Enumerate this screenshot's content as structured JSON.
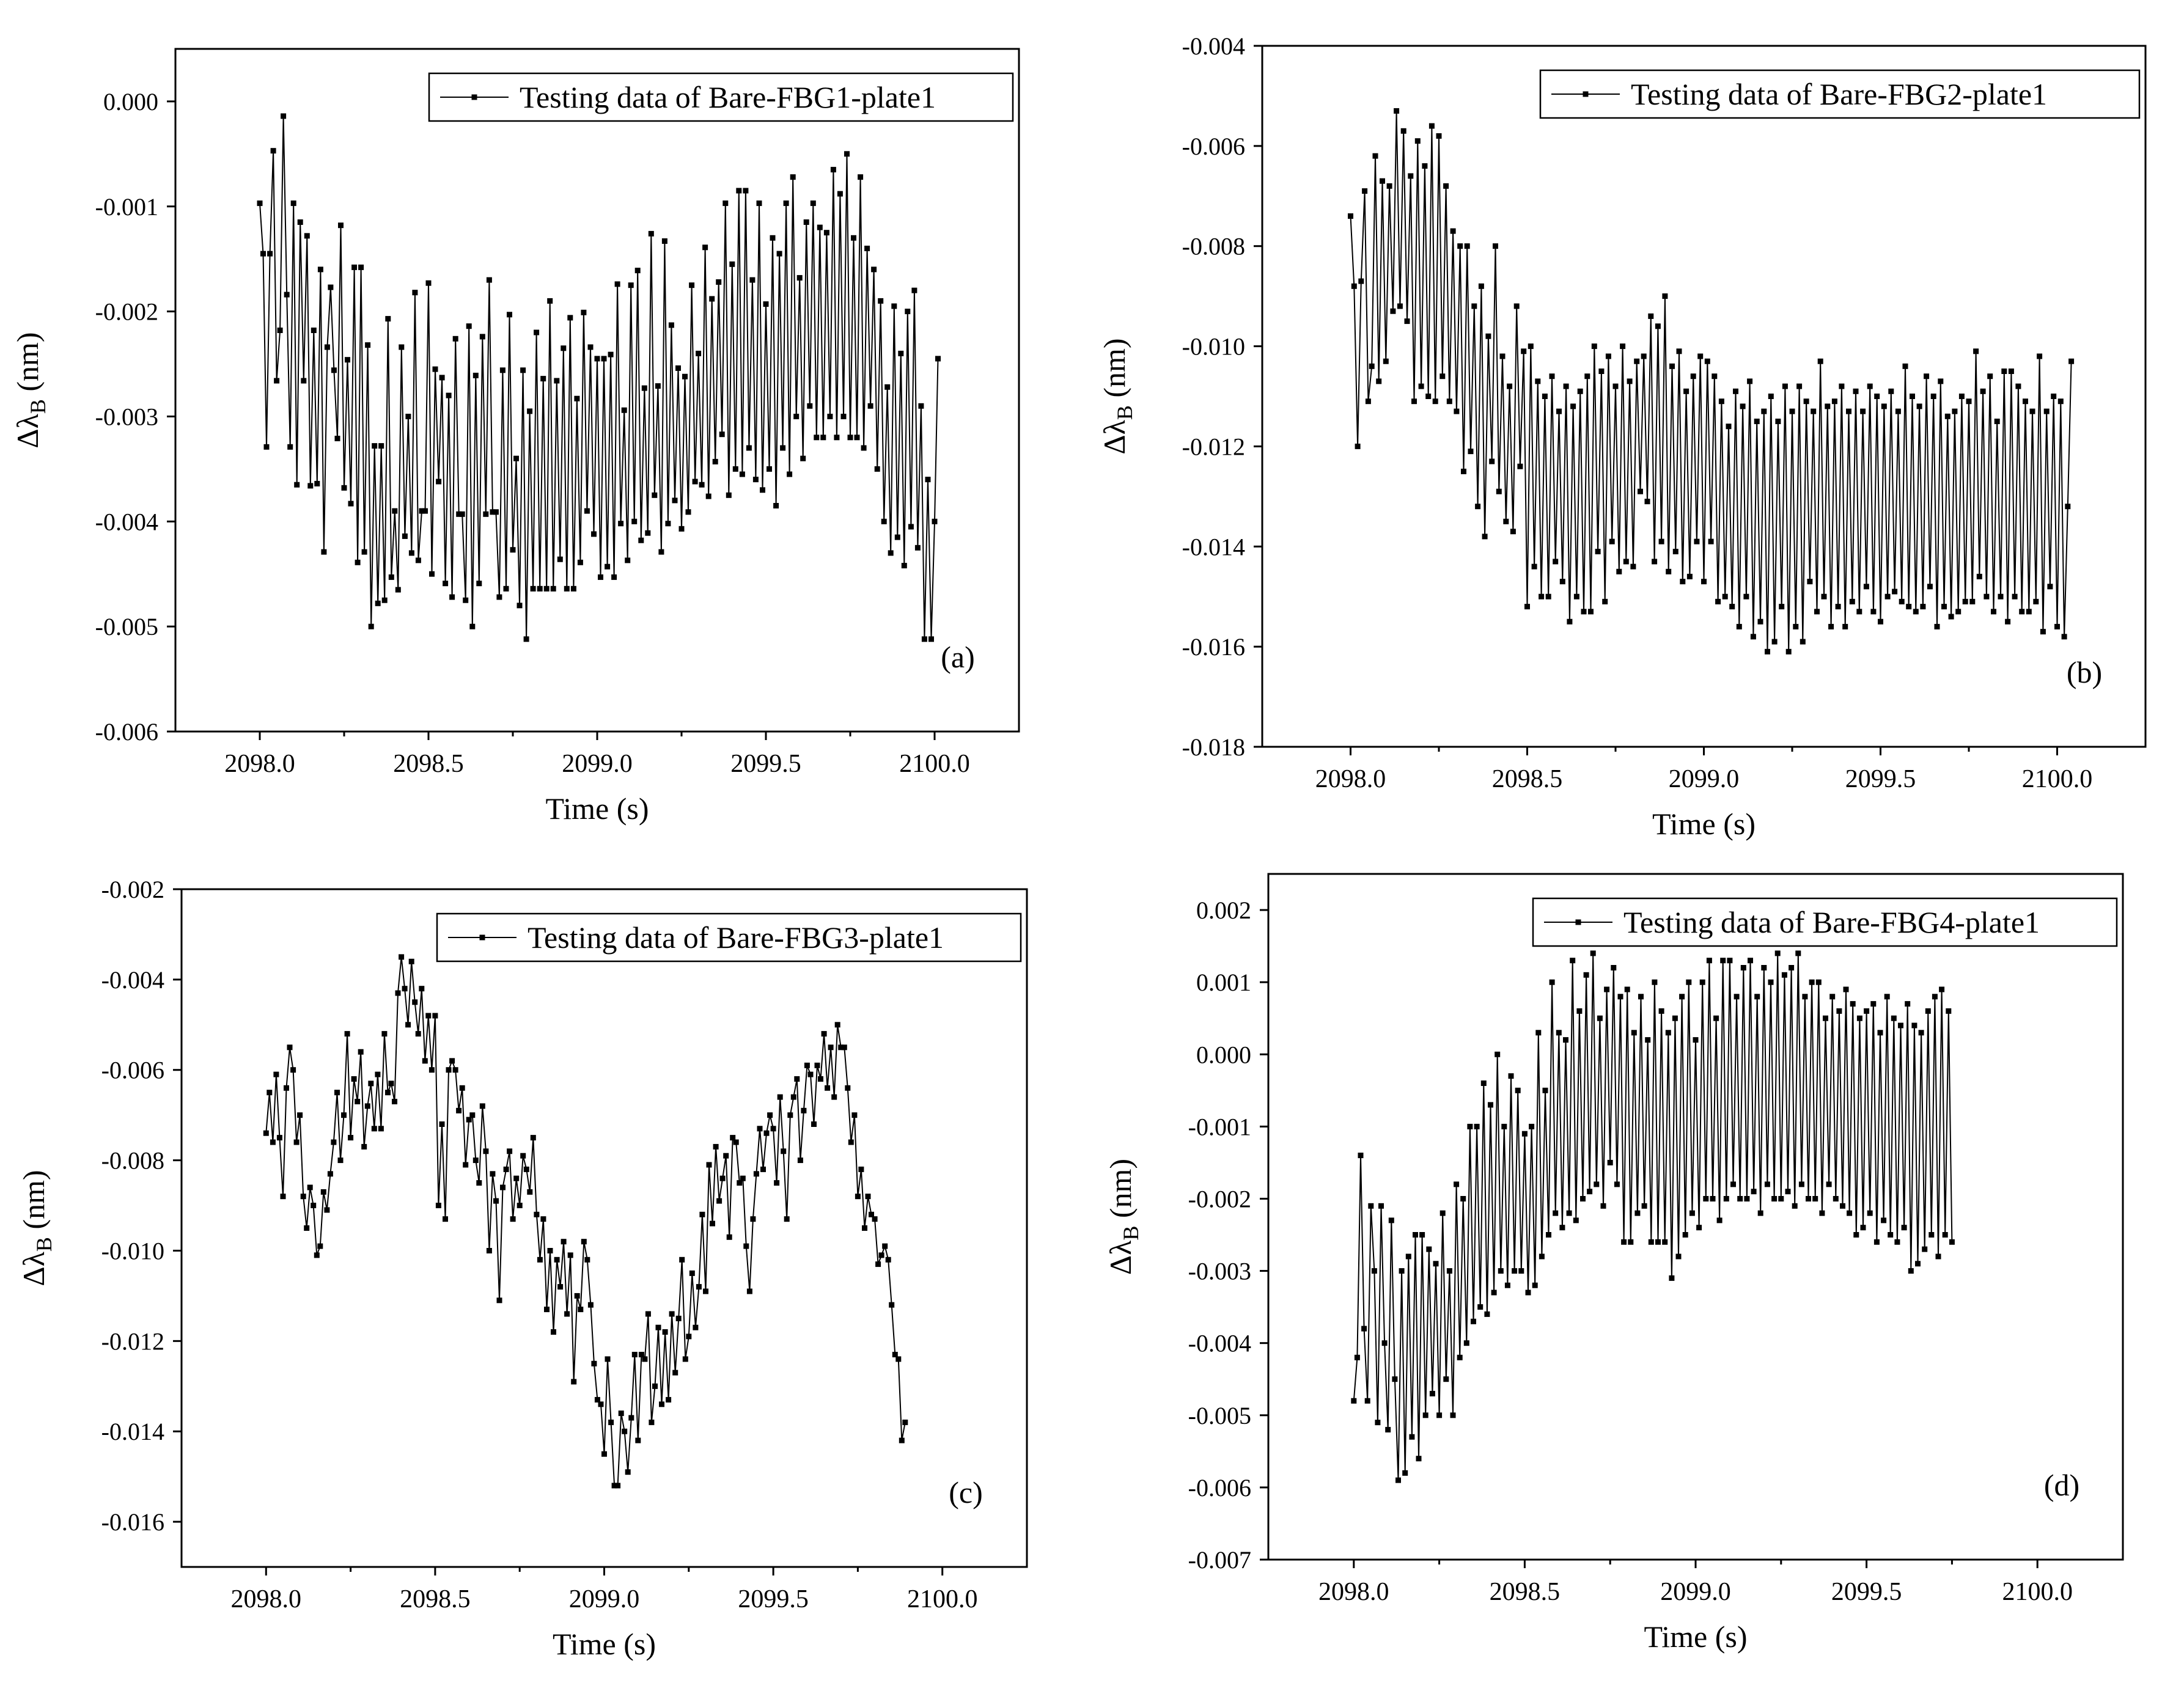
{
  "chart_data": [
    {
      "type": "line",
      "panel": "(a)",
      "series_name": "Testing data of Bare-FBG1-plate1",
      "xlabel": "Time (s)",
      "ylabel": "Δλ",
      "ylabel_sub": "B",
      "ylabel_unit": " (nm)",
      "xlim": [
        2097.75,
        2100.25
      ],
      "ylim": [
        -0.006,
        0.0005
      ],
      "xticks": [
        2098.0,
        2098.5,
        2099.0,
        2099.5,
        2100.0
      ],
      "xtick_labels": [
        "2098.0",
        "2098.5",
        "2099.0",
        "2099.5",
        "2100.0"
      ],
      "yticks": [
        0.0,
        -0.001,
        -0.002,
        -0.003,
        -0.004,
        -0.005,
        -0.006
      ],
      "ytick_labels": [
        "0.000",
        "-0.001",
        "-0.002",
        "-0.003",
        "-0.004",
        "-0.005",
        "-0.006"
      ],
      "legend_position": "top-right",
      "x_start": 2098.0,
      "x_step": 0.01,
      "y": [
        -0.00097,
        -0.00145,
        -0.00329,
        -0.00145,
        -0.00047,
        -0.00266,
        -0.00218,
        -0.00014,
        -0.00184,
        -0.00329,
        -0.00097,
        -0.00365,
        -0.00115,
        -0.00266,
        -0.00128,
        -0.00366,
        -0.00218,
        -0.00364,
        -0.0016,
        -0.00429,
        -0.00234,
        -0.00177,
        -0.00256,
        -0.00321,
        -0.00118,
        -0.00368,
        -0.00246,
        -0.00383,
        -0.00158,
        -0.00439,
        -0.00158,
        -0.00429,
        -0.00232,
        -0.005,
        -0.00328,
        -0.00478,
        -0.00328,
        -0.00475,
        -0.00207,
        -0.00453,
        -0.0039,
        -0.00465,
        -0.00234,
        -0.00414,
        -0.003,
        -0.0043,
        -0.00182,
        -0.00437,
        -0.0039,
        -0.0039,
        -0.00173,
        -0.0045,
        -0.00255,
        -0.00362,
        -0.00263,
        -0.00459,
        -0.0028,
        -0.00472,
        -0.00226,
        -0.00393,
        -0.00393,
        -0.00475,
        -0.00214,
        -0.005,
        -0.00261,
        -0.00459,
        -0.00224,
        -0.00393,
        -0.0017,
        -0.00391,
        -0.00391,
        -0.00472,
        -0.00256,
        -0.00464,
        -0.00203,
        -0.00427,
        -0.0034,
        -0.0048,
        -0.00256,
        -0.00512,
        -0.00295,
        -0.00464,
        -0.0022,
        -0.00464,
        -0.00264,
        -0.00464,
        -0.0019,
        -0.00464,
        -0.00266,
        -0.00436,
        -0.00235,
        -0.00464,
        -0.00206,
        -0.00464,
        -0.00283,
        -0.00439,
        -0.00201,
        -0.0039,
        -0.00234,
        -0.00412,
        -0.00245,
        -0.00453,
        -0.00245,
        -0.00443,
        -0.00241,
        -0.00453,
        -0.00174,
        -0.00402,
        -0.00294,
        -0.00437,
        -0.00175,
        -0.004,
        -0.00161,
        -0.00418,
        -0.00273,
        -0.00411,
        -0.00126,
        -0.00375,
        -0.00271,
        -0.00429,
        -0.00133,
        -0.00402,
        -0.00213,
        -0.0038,
        -0.00254,
        -0.00407,
        -0.00262,
        -0.00391,
        -0.00175,
        -0.00362,
        -0.0024,
        -0.00365,
        -0.00139,
        -0.00376,
        -0.00188,
        -0.00343,
        -0.00172,
        -0.00317,
        -0.00097,
        -0.00375,
        -0.00155,
        -0.0035,
        -0.00085,
        -0.00355,
        -0.00085,
        -0.0033,
        -0.0017,
        -0.0036,
        -0.00097,
        -0.0037,
        -0.00193,
        -0.0035,
        -0.0013,
        -0.00385,
        -0.00145,
        -0.0033,
        -0.00097,
        -0.00355,
        -0.00072,
        -0.003,
        -0.00168,
        -0.0034,
        -0.00115,
        -0.0029,
        -0.00097,
        -0.0032,
        -0.0012,
        -0.0032,
        -0.00125,
        -0.003,
        -0.00065,
        -0.0032,
        -0.00088,
        -0.003,
        -0.0005,
        -0.0032,
        -0.0013,
        -0.0032,
        -0.00072,
        -0.0033,
        -0.0014,
        -0.0029,
        -0.0016,
        -0.0035,
        -0.0019,
        -0.004,
        -0.00272,
        -0.0043,
        -0.00195,
        -0.00415,
        -0.0024,
        -0.00442,
        -0.002,
        -0.00405,
        -0.0018,
        -0.00425,
        -0.0029,
        -0.00512,
        -0.0036,
        -0.00512,
        -0.004,
        -0.00245
      ]
    },
    {
      "type": "line",
      "panel": "(b)",
      "series_name": "Testing data of Bare-FBG2-plate1",
      "xlabel": "Time (s)",
      "ylabel": "Δλ",
      "ylabel_sub": "B",
      "ylabel_unit": " (nm)",
      "xlim": [
        2097.75,
        2100.25
      ],
      "ylim": [
        -0.018,
        -0.004
      ],
      "xticks": [
        2098.0,
        2098.5,
        2099.0,
        2099.5,
        2100.0
      ],
      "xtick_labels": [
        "2098.0",
        "2098.5",
        "2099.0",
        "2099.5",
        "2100.0"
      ],
      "yticks": [
        -0.004,
        -0.006,
        -0.008,
        -0.01,
        -0.012,
        -0.014,
        -0.016,
        -0.018
      ],
      "ytick_labels": [
        "-0.004",
        "-0.006",
        "-0.008",
        "-0.010",
        "-0.012",
        "-0.014",
        "-0.016",
        "-0.018"
      ],
      "legend_position": "top-right",
      "x_start": 2098.0,
      "x_step": 0.01,
      "y": [
        -0.0074,
        -0.0088,
        -0.012,
        -0.0087,
        -0.0069,
        -0.0111,
        -0.0104,
        -0.0062,
        -0.0107,
        -0.0067,
        -0.0103,
        -0.0068,
        -0.0093,
        -0.0053,
        -0.0092,
        -0.0057,
        -0.0095,
        -0.0066,
        -0.0111,
        -0.0059,
        -0.0108,
        -0.0064,
        -0.011,
        -0.0056,
        -0.0111,
        -0.0058,
        -0.0106,
        -0.0068,
        -0.0111,
        -0.0077,
        -0.0113,
        -0.008,
        -0.0125,
        -0.008,
        -0.0121,
        -0.0092,
        -0.0132,
        -0.0088,
        -0.0138,
        -0.0098,
        -0.0123,
        -0.008,
        -0.0129,
        -0.0102,
        -0.0135,
        -0.0108,
        -0.0137,
        -0.0092,
        -0.0124,
        -0.0101,
        -0.0152,
        -0.01,
        -0.0144,
        -0.0107,
        -0.015,
        -0.011,
        -0.015,
        -0.0106,
        -0.0143,
        -0.0113,
        -0.0147,
        -0.0108,
        -0.0155,
        -0.0112,
        -0.015,
        -0.0109,
        -0.0153,
        -0.0106,
        -0.0153,
        -0.01,
        -0.0141,
        -0.0105,
        -0.0151,
        -0.0102,
        -0.0139,
        -0.0108,
        -0.0145,
        -0.01,
        -0.0143,
        -0.0107,
        -0.0144,
        -0.0103,
        -0.0129,
        -0.0102,
        -0.0131,
        -0.0094,
        -0.0143,
        -0.0096,
        -0.0139,
        -0.009,
        -0.0145,
        -0.0104,
        -0.0141,
        -0.0101,
        -0.0147,
        -0.0109,
        -0.0146,
        -0.0106,
        -0.0139,
        -0.0102,
        -0.0147,
        -0.0103,
        -0.0139,
        -0.0106,
        -0.0151,
        -0.0111,
        -0.015,
        -0.0116,
        -0.0152,
        -0.0109,
        -0.0156,
        -0.0112,
        -0.015,
        -0.0107,
        -0.0158,
        -0.0115,
        -0.0155,
        -0.0113,
        -0.0161,
        -0.011,
        -0.0159,
        -0.0115,
        -0.0152,
        -0.0108,
        -0.0161,
        -0.0113,
        -0.0156,
        -0.0108,
        -0.0159,
        -0.0111,
        -0.0147,
        -0.0113,
        -0.0153,
        -0.0103,
        -0.015,
        -0.0112,
        -0.0156,
        -0.0111,
        -0.0152,
        -0.0108,
        -0.0156,
        -0.0113,
        -0.0151,
        -0.0109,
        -0.0153,
        -0.0113,
        -0.0148,
        -0.0108,
        -0.0153,
        -0.011,
        -0.0155,
        -0.0112,
        -0.015,
        -0.0109,
        -0.0149,
        -0.0113,
        -0.0151,
        -0.0104,
        -0.0152,
        -0.011,
        -0.0153,
        -0.0112,
        -0.0152,
        -0.0106,
        -0.0148,
        -0.011,
        -0.0156,
        -0.0107,
        -0.0152,
        -0.0114,
        -0.0154,
        -0.0113,
        -0.0153,
        -0.011,
        -0.0151,
        -0.0111,
        -0.0151,
        -0.0101,
        -0.0146,
        -0.0109,
        -0.015,
        -0.0106,
        -0.0153,
        -0.0115,
        -0.015,
        -0.0105,
        -0.0155,
        -0.0105,
        -0.015,
        -0.0108,
        -0.0153,
        -0.0111,
        -0.0153,
        -0.0113,
        -0.0151,
        -0.0102,
        -0.0157,
        -0.0113,
        -0.0148,
        -0.011,
        -0.0156,
        -0.0111,
        -0.0158,
        -0.0132,
        -0.0103
      ]
    },
    {
      "type": "line",
      "panel": "(c)",
      "series_name": "Testing data of Bare-FBG3-plate1",
      "xlabel": "Time (s)",
      "ylabel": "Δλ",
      "ylabel_sub": "B",
      "ylabel_unit": " (nm)",
      "xlim": [
        2097.75,
        2100.25
      ],
      "ylim": [
        -0.017,
        -0.002
      ],
      "xticks": [
        2098.0,
        2098.5,
        2099.0,
        2099.5,
        2100.0
      ],
      "xtick_labels": [
        "2098.0",
        "2098.5",
        "2099.0",
        "2099.5",
        "2100.0"
      ],
      "yticks": [
        -0.002,
        -0.004,
        -0.006,
        -0.008,
        -0.01,
        -0.012,
        -0.014,
        -0.016
      ],
      "ytick_labels": [
        "-0.002",
        "-0.004",
        "-0.006",
        "-0.008",
        "-0.010",
        "-0.012",
        "-0.014",
        "-0.016"
      ],
      "legend_position": "top-right",
      "x_start": 2098.0,
      "x_step": 0.01,
      "y": [
        -0.0074,
        -0.0065,
        -0.0076,
        -0.0061,
        -0.0075,
        -0.0088,
        -0.0064,
        -0.0055,
        -0.006,
        -0.0076,
        -0.007,
        -0.0088,
        -0.0095,
        -0.0086,
        -0.009,
        -0.0101,
        -0.0099,
        -0.0087,
        -0.0091,
        -0.0083,
        -0.0076,
        -0.0065,
        -0.008,
        -0.007,
        -0.0052,
        -0.0075,
        -0.0062,
        -0.0067,
        -0.0056,
        -0.0077,
        -0.0068,
        -0.0063,
        -0.0073,
        -0.0061,
        -0.0073,
        -0.0052,
        -0.0065,
        -0.0063,
        -0.0067,
        -0.0043,
        -0.0035,
        -0.0042,
        -0.005,
        -0.0036,
        -0.0045,
        -0.0052,
        -0.0042,
        -0.0058,
        -0.0048,
        -0.006,
        -0.0048,
        -0.009,
        -0.0072,
        -0.0093,
        -0.006,
        -0.0058,
        -0.006,
        -0.0069,
        -0.0064,
        -0.0081,
        -0.0071,
        -0.007,
        -0.008,
        -0.0085,
        -0.0068,
        -0.0078,
        -0.01,
        -0.0083,
        -0.0089,
        -0.0111,
        -0.0086,
        -0.0082,
        -0.0078,
        -0.0093,
        -0.0084,
        -0.009,
        -0.0079,
        -0.0082,
        -0.0087,
        -0.0075,
        -0.0092,
        -0.0102,
        -0.0093,
        -0.0113,
        -0.01,
        -0.0118,
        -0.0102,
        -0.0108,
        -0.0098,
        -0.0114,
        -0.0101,
        -0.0129,
        -0.011,
        -0.0113,
        -0.0098,
        -0.0102,
        -0.0112,
        -0.0125,
        -0.0133,
        -0.0134,
        -0.0145,
        -0.0124,
        -0.0138,
        -0.0152,
        -0.0152,
        -0.0136,
        -0.014,
        -0.0149,
        -0.0137,
        -0.0123,
        -0.0142,
        -0.0123,
        -0.0124,
        -0.0114,
        -0.0138,
        -0.013,
        -0.0117,
        -0.0134,
        -0.0118,
        -0.0133,
        -0.0114,
        -0.0127,
        -0.0115,
        -0.0102,
        -0.0124,
        -0.0119,
        -0.0105,
        -0.0117,
        -0.0108,
        -0.0092,
        -0.0109,
        -0.0081,
        -0.0094,
        -0.0077,
        -0.0089,
        -0.0084,
        -0.0079,
        -0.0097,
        -0.0075,
        -0.0076,
        -0.0085,
        -0.0084,
        -0.0099,
        -0.0109,
        -0.0093,
        -0.0083,
        -0.0073,
        -0.0082,
        -0.0074,
        -0.007,
        -0.0073,
        -0.0085,
        -0.0066,
        -0.0078,
        -0.0093,
        -0.007,
        -0.0066,
        -0.0062,
        -0.008,
        -0.0069,
        -0.0059,
        -0.0061,
        -0.0072,
        -0.0059,
        -0.0062,
        -0.0052,
        -0.0064,
        -0.0055,
        -0.0066,
        -0.005,
        -0.0055,
        -0.0055,
        -0.0064,
        -0.0076,
        -0.007,
        -0.0088,
        -0.0082,
        -0.0095,
        -0.0088,
        -0.0092,
        -0.0093,
        -0.0103,
        -0.0101,
        -0.0099,
        -0.0102,
        -0.0112,
        -0.0123,
        -0.0124,
        -0.0142,
        -0.0138
      ]
    },
    {
      "type": "line",
      "panel": "(d)",
      "series_name": "Testing data of Bare-FBG4-plate1",
      "xlabel": "Time (s)",
      "ylabel": "Δλ",
      "ylabel_sub": "B",
      "ylabel_unit": " (nm)",
      "xlim": [
        2097.75,
        2100.25
      ],
      "ylim": [
        -0.007,
        0.0025
      ],
      "xticks": [
        2098.0,
        2098.5,
        2099.0,
        2099.5,
        2100.0
      ],
      "xtick_labels": [
        "2098.0",
        "2098.5",
        "2099.0",
        "2099.5",
        "2100.0"
      ],
      "yticks": [
        0.002,
        0.001,
        0.0,
        -0.001,
        -0.002,
        -0.003,
        -0.004,
        -0.005,
        -0.006,
        -0.007
      ],
      "ytick_labels": [
        "0.002",
        "0.001",
        "0.000",
        "-0.001",
        "-0.002",
        "-0.003",
        "-0.004",
        "-0.005",
        "-0.006",
        "-0.007"
      ],
      "legend_position": "top-right",
      "x_start": 2098.0,
      "x_step": 0.01,
      "y": [
        -0.0048,
        -0.0042,
        -0.0014,
        -0.0038,
        -0.0048,
        -0.0021,
        -0.003,
        -0.0051,
        -0.0021,
        -0.004,
        -0.0052,
        -0.0023,
        -0.0045,
        -0.0059,
        -0.003,
        -0.0058,
        -0.0028,
        -0.0053,
        -0.0025,
        -0.0056,
        -0.0025,
        -0.005,
        -0.0027,
        -0.0047,
        -0.0029,
        -0.005,
        -0.0022,
        -0.0045,
        -0.003,
        -0.005,
        -0.0018,
        -0.0042,
        -0.002,
        -0.004,
        -0.001,
        -0.0037,
        -0.001,
        -0.0035,
        -0.0004,
        -0.0036,
        -0.0007,
        -0.0033,
        -0.0,
        -0.003,
        -0.001,
        -0.0032,
        -0.0003,
        -0.003,
        -0.0005,
        -0.003,
        -0.0011,
        -0.0033,
        -0.001,
        -0.0032,
        0.0003,
        -0.0028,
        -0.0005,
        -0.0025,
        0.001,
        -0.0022,
        0.0003,
        -0.0024,
        0.0002,
        -0.0022,
        0.0013,
        -0.0023,
        0.0006,
        -0.002,
        0.0011,
        -0.0019,
        0.0014,
        -0.0018,
        0.0005,
        -0.0021,
        0.0009,
        -0.0015,
        0.0012,
        -0.0018,
        0.0008,
        -0.0026,
        0.0009,
        -0.0026,
        0.0003,
        -0.0022,
        0.0008,
        -0.0021,
        0.0002,
        -0.0026,
        0.001,
        -0.0026,
        0.0006,
        -0.0026,
        0.0003,
        -0.0031,
        0.0005,
        -0.0028,
        0.0008,
        -0.0025,
        0.001,
        -0.0022,
        0.0002,
        -0.0024,
        0.001,
        -0.002,
        0.0013,
        -0.002,
        0.0005,
        -0.0023,
        0.0013,
        -0.002,
        0.0013,
        -0.0018,
        0.0008,
        -0.002,
        0.0012,
        -0.002,
        0.0013,
        -0.0019,
        0.0008,
        -0.0022,
        0.0012,
        -0.0018,
        0.001,
        -0.002,
        0.0014,
        -0.002,
        0.0011,
        -0.0019,
        0.0012,
        -0.0021,
        0.0014,
        -0.0018,
        0.0008,
        -0.002,
        0.001,
        -0.002,
        0.001,
        -0.0022,
        0.0005,
        -0.0018,
        0.0008,
        -0.002,
        0.0006,
        -0.0021,
        0.0009,
        -0.0022,
        0.0007,
        -0.0025,
        0.0005,
        -0.0024,
        0.0006,
        -0.0022,
        0.0007,
        -0.0026,
        0.0003,
        -0.0023,
        0.0008,
        -0.0025,
        0.0005,
        -0.0026,
        0.0004,
        -0.0024,
        0.0007,
        -0.003,
        0.0004,
        -0.0029,
        0.0003,
        -0.0027,
        0.0006,
        -0.0025,
        0.0008,
        -0.0028,
        0.0009,
        -0.0025,
        0.0006,
        -0.0026
      ]
    }
  ]
}
